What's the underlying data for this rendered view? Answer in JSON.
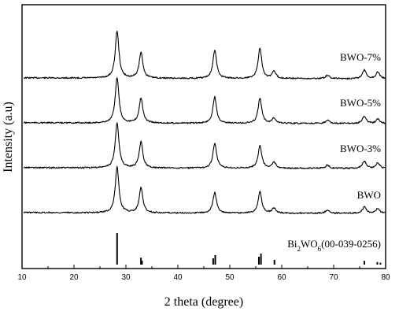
{
  "chart_data": {
    "type": "line",
    "xlabel": "2 theta (degree)",
    "ylabel": "Intensity (a.u)",
    "xlim": [
      10,
      80
    ],
    "x_ticks": [
      10,
      20,
      30,
      40,
      50,
      60,
      70,
      80
    ],
    "grid": false,
    "series": [
      {
        "name": "BWO-7%",
        "peaks": [
          {
            "x": 28.3,
            "y": 100
          },
          {
            "x": 32.9,
            "y": 55
          },
          {
            "x": 47.1,
            "y": 60
          },
          {
            "x": 55.8,
            "y": 65
          },
          {
            "x": 58.5,
            "y": 15
          },
          {
            "x": 68.8,
            "y": 7
          },
          {
            "x": 75.9,
            "y": 18
          },
          {
            "x": 78.5,
            "y": 14
          }
        ]
      },
      {
        "name": "BWO-5%",
        "peaks": [
          {
            "x": 28.3,
            "y": 100
          },
          {
            "x": 32.9,
            "y": 55
          },
          {
            "x": 47.1,
            "y": 58
          },
          {
            "x": 55.8,
            "y": 55
          },
          {
            "x": 58.5,
            "y": 12
          },
          {
            "x": 68.8,
            "y": 7
          },
          {
            "x": 75.9,
            "y": 16
          },
          {
            "x": 78.5,
            "y": 10
          }
        ]
      },
      {
        "name": "BWO-3%",
        "peaks": [
          {
            "x": 28.3,
            "y": 100
          },
          {
            "x": 32.9,
            "y": 57
          },
          {
            "x": 47.1,
            "y": 55
          },
          {
            "x": 55.8,
            "y": 50
          },
          {
            "x": 58.5,
            "y": 13
          },
          {
            "x": 68.8,
            "y": 7
          },
          {
            "x": 75.9,
            "y": 16
          },
          {
            "x": 78.5,
            "y": 12
          }
        ]
      },
      {
        "name": "BWO",
        "peaks": [
          {
            "x": 28.3,
            "y": 100
          },
          {
            "x": 32.9,
            "y": 55
          },
          {
            "x": 47.1,
            "y": 45
          },
          {
            "x": 55.8,
            "y": 47
          },
          {
            "x": 58.5,
            "y": 11
          },
          {
            "x": 68.8,
            "y": 7
          },
          {
            "x": 75.9,
            "y": 14
          },
          {
            "x": 78.5,
            "y": 11
          }
        ]
      }
    ],
    "reference": {
      "name_main": "Bi",
      "name_sub1": "2",
      "name_mid": "WO",
      "name_sub2": "6",
      "name_tail": "(00-039-0256)",
      "lines": [
        {
          "x": 28.3,
          "y": 100
        },
        {
          "x": 32.9,
          "y": 22
        },
        {
          "x": 33.1,
          "y": 12
        },
        {
          "x": 46.8,
          "y": 20
        },
        {
          "x": 47.2,
          "y": 30
        },
        {
          "x": 55.6,
          "y": 25
        },
        {
          "x": 56.0,
          "y": 35
        },
        {
          "x": 58.6,
          "y": 15
        },
        {
          "x": 75.9,
          "y": 12
        },
        {
          "x": 78.4,
          "y": 8
        },
        {
          "x": 79.0,
          "y": 6
        }
      ]
    }
  }
}
